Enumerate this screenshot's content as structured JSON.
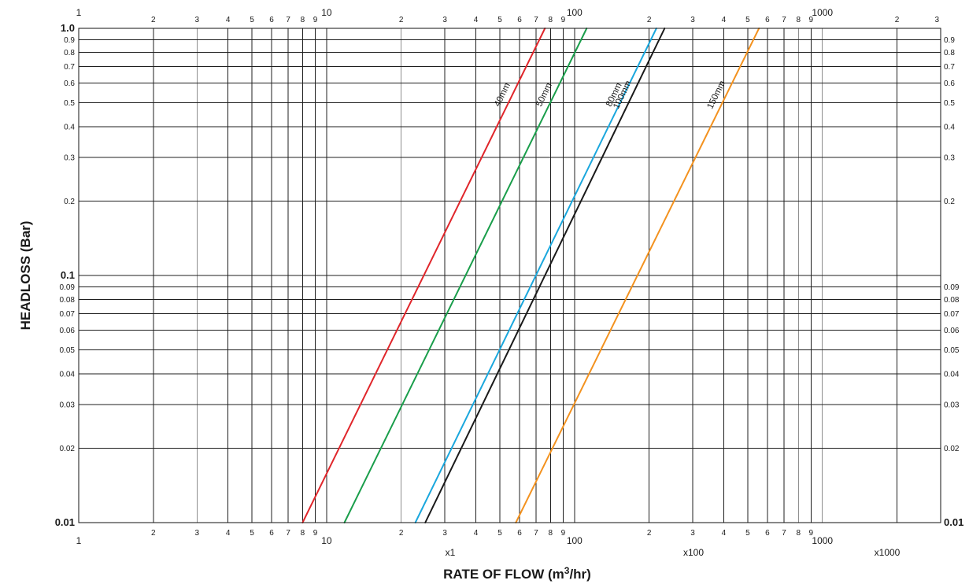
{
  "chart_data": {
    "type": "line",
    "xscale": "log",
    "yscale": "log",
    "xlim": [
      1,
      3000
    ],
    "ylim": [
      0.01,
      1.0
    ],
    "grid": true,
    "xlabel": "RATE OF FLOW (m",
    "xlabel_sup": "3",
    "xlabel_tail": "/hr)",
    "ylabel": "HEADLOSS (Bar)",
    "x_multipliers": [
      "x1",
      "x100",
      "x1000"
    ],
    "x_tick_labels_top": [
      {
        "x": 1,
        "label": "1"
      },
      {
        "x": 2,
        "label": "2"
      },
      {
        "x": 3,
        "label": "3"
      },
      {
        "x": 4,
        "label": "4"
      },
      {
        "x": 5,
        "label": "5"
      },
      {
        "x": 6,
        "label": "6"
      },
      {
        "x": 7,
        "label": "7"
      },
      {
        "x": 8,
        "label": "8"
      },
      {
        "x": 9,
        "label": "9"
      },
      {
        "x": 10,
        "label": "10"
      },
      {
        "x": 20,
        "label": "2"
      },
      {
        "x": 30,
        "label": "3"
      },
      {
        "x": 40,
        "label": "4"
      },
      {
        "x": 50,
        "label": "5"
      },
      {
        "x": 60,
        "label": "6"
      },
      {
        "x": 70,
        "label": "7"
      },
      {
        "x": 80,
        "label": "8"
      },
      {
        "x": 90,
        "label": "9"
      },
      {
        "x": 100,
        "label": "100"
      },
      {
        "x": 200,
        "label": "2"
      },
      {
        "x": 300,
        "label": "3"
      },
      {
        "x": 400,
        "label": "4"
      },
      {
        "x": 500,
        "label": "5"
      },
      {
        "x": 600,
        "label": "6"
      },
      {
        "x": 700,
        "label": "7"
      },
      {
        "x": 800,
        "label": "8"
      },
      {
        "x": 900,
        "label": "9"
      },
      {
        "x": 1000,
        "label": "1000"
      },
      {
        "x": 2000,
        "label": "2"
      },
      {
        "x": 3000,
        "label": "3"
      }
    ],
    "x_tick_labels_bottom": [
      {
        "x": 1,
        "label": "1"
      },
      {
        "x": 2,
        "label": "2"
      },
      {
        "x": 3,
        "label": "3"
      },
      {
        "x": 4,
        "label": "4"
      },
      {
        "x": 5,
        "label": "5"
      },
      {
        "x": 6,
        "label": "6"
      },
      {
        "x": 7,
        "label": "7"
      },
      {
        "x": 8,
        "label": "8"
      },
      {
        "x": 9,
        "label": "9"
      },
      {
        "x": 10,
        "label": "10"
      },
      {
        "x": 20,
        "label": "2"
      },
      {
        "x": 30,
        "label": "3"
      },
      {
        "x": 40,
        "label": "4"
      },
      {
        "x": 50,
        "label": "5"
      },
      {
        "x": 60,
        "label": "6"
      },
      {
        "x": 70,
        "label": "7"
      },
      {
        "x": 80,
        "label": "8"
      },
      {
        "x": 90,
        "label": "9"
      },
      {
        "x": 100,
        "label": "100"
      },
      {
        "x": 200,
        "label": "2"
      },
      {
        "x": 300,
        "label": "3"
      },
      {
        "x": 400,
        "label": "4"
      },
      {
        "x": 500,
        "label": "5"
      },
      {
        "x": 600,
        "label": "6"
      },
      {
        "x": 700,
        "label": "7"
      },
      {
        "x": 800,
        "label": "8"
      },
      {
        "x": 900,
        "label": "9"
      },
      {
        "x": 1000,
        "label": "1000"
      }
    ],
    "y_tick_labels": [
      {
        "y": 1.0,
        "label": "1.0"
      },
      {
        "y": 0.9,
        "label": "0.9"
      },
      {
        "y": 0.8,
        "label": "0.8"
      },
      {
        "y": 0.7,
        "label": "0.7"
      },
      {
        "y": 0.6,
        "label": "0.6"
      },
      {
        "y": 0.5,
        "label": "0.5"
      },
      {
        "y": 0.4,
        "label": "0.4"
      },
      {
        "y": 0.3,
        "label": "0.3"
      },
      {
        "y": 0.2,
        "label": "0.2"
      },
      {
        "y": 0.1,
        "label": "0.1"
      },
      {
        "y": 0.09,
        "label": "0.09"
      },
      {
        "y": 0.08,
        "label": "0.08"
      },
      {
        "y": 0.07,
        "label": "0.07"
      },
      {
        "y": 0.06,
        "label": "0.06"
      },
      {
        "y": 0.05,
        "label": "0.05"
      },
      {
        "y": 0.04,
        "label": "0.04"
      },
      {
        "y": 0.03,
        "label": "0.03"
      },
      {
        "y": 0.02,
        "label": "0.02"
      },
      {
        "y": 0.01,
        "label": "0.01"
      }
    ],
    "series": [
      {
        "name": "40mm",
        "color": "#e0262b",
        "points": [
          [
            8.0,
            0.01
          ],
          [
            76.0,
            1.0
          ]
        ]
      },
      {
        "name": "50mm",
        "color": "#1a9e4b",
        "points": [
          [
            11.8,
            0.01
          ],
          [
            112.0,
            1.0
          ]
        ]
      },
      {
        "name": "80mm",
        "color": "#1aa7dd",
        "points": [
          [
            22.8,
            0.01
          ],
          [
            214.0,
            1.0
          ]
        ]
      },
      {
        "name": "100mm",
        "color": "#1a1a1a",
        "points": [
          [
            25.0,
            0.01
          ],
          [
            231.0,
            1.0
          ]
        ]
      },
      {
        "name": "150mm",
        "color": "#f3921f",
        "points": [
          [
            58.0,
            0.01
          ],
          [
            555.0,
            1.0
          ]
        ]
      }
    ]
  }
}
